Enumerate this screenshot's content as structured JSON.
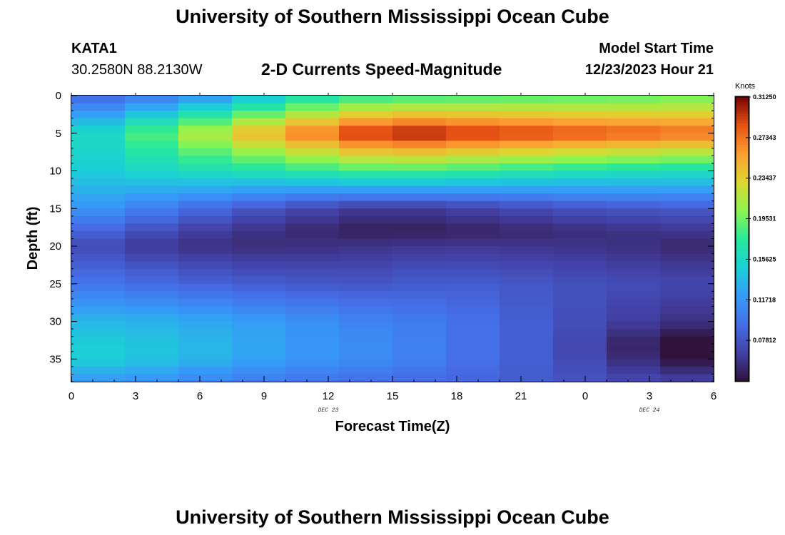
{
  "header": {
    "title": "University of Southern Mississippi Ocean Cube",
    "station_id": "KATA1",
    "station_coords": "30.2580N  88.2130W",
    "plot_subtitle": "2-D Currents Speed-Magnitude",
    "model_start_label": "Model Start Time",
    "model_start_value": "12/23/2023 Hour 21"
  },
  "footer": {
    "title": "University of Southern Mississippi Ocean Cube"
  },
  "chart_data": {
    "type": "heatmap",
    "title": "2-D Currents Speed-Magnitude",
    "xlabel": "Forecast Time(Z)",
    "ylabel": "Depth (ft)",
    "x_tick_labels": [
      "0",
      "3",
      "6",
      "9",
      "12",
      "15",
      "18",
      "21",
      "0",
      "3",
      "6"
    ],
    "x_date_labels": [
      {
        "text": "DEC 23",
        "at_tick": 4
      },
      {
        "text": "DEC 24",
        "at_tick": 9
      }
    ],
    "x_range_hours": [
      0,
      30
    ],
    "y_tick_labels": [
      "0",
      "5",
      "10",
      "15",
      "20",
      "25",
      "30",
      "35"
    ],
    "y_range_ft": [
      0,
      38
    ],
    "time_columns_hours": [
      0,
      2.5,
      5,
      7.5,
      10,
      12.5,
      15,
      17.5,
      20,
      22.5,
      25,
      27.5,
      30
    ],
    "depth_rows_ft": [
      0,
      5,
      10,
      15,
      18,
      20,
      25,
      30,
      33,
      35,
      38
    ],
    "speed_knots": [
      [
        0.085,
        0.095,
        0.105,
        0.125,
        0.15,
        0.17,
        0.175,
        0.18,
        0.18,
        0.185,
        0.185,
        0.19,
        0.195
      ],
      [
        0.14,
        0.175,
        0.2,
        0.235,
        0.26,
        0.285,
        0.31,
        0.3,
        0.295,
        0.29,
        0.285,
        0.28,
        0.275
      ],
      [
        0.145,
        0.15,
        0.16,
        0.165,
        0.17,
        0.18,
        0.185,
        0.18,
        0.175,
        0.17,
        0.165,
        0.165,
        0.16
      ],
      [
        0.125,
        0.11,
        0.1,
        0.085,
        0.075,
        0.065,
        0.06,
        0.065,
        0.07,
        0.075,
        0.08,
        0.08,
        0.085
      ],
      [
        0.095,
        0.08,
        0.07,
        0.06,
        0.055,
        0.05,
        0.045,
        0.05,
        0.05,
        0.055,
        0.055,
        0.06,
        0.06
      ],
      [
        0.08,
        0.065,
        0.06,
        0.055,
        0.055,
        0.058,
        0.06,
        0.062,
        0.06,
        0.06,
        0.058,
        0.055,
        0.05
      ],
      [
        0.1,
        0.095,
        0.09,
        0.085,
        0.082,
        0.08,
        0.08,
        0.085,
        0.082,
        0.078,
        0.075,
        0.072,
        0.07
      ],
      [
        0.135,
        0.135,
        0.13,
        0.125,
        0.12,
        0.11,
        0.105,
        0.1,
        0.09,
        0.08,
        0.07,
        0.06,
        0.055
      ],
      [
        0.15,
        0.145,
        0.14,
        0.132,
        0.122,
        0.115,
        0.11,
        0.1,
        0.09,
        0.08,
        0.06,
        0.04,
        0.03
      ],
      [
        0.15,
        0.145,
        0.138,
        0.13,
        0.12,
        0.115,
        0.11,
        0.1,
        0.09,
        0.08,
        0.065,
        0.045,
        0.035
      ],
      [
        0.12,
        0.118,
        0.112,
        0.105,
        0.1,
        0.095,
        0.092,
        0.09,
        0.085,
        0.08,
        0.075,
        0.07,
        0.068
      ]
    ],
    "colorbar": {
      "unit_label": "Knots",
      "vmin": 0.03906,
      "vmax": 0.3125,
      "tick_labels": [
        "0.31250",
        "0.27343",
        "0.23437",
        "0.19531",
        "0.15625",
        "0.11718",
        "0.07812"
      ],
      "tick_values": [
        0.3125,
        0.27343,
        0.23437,
        0.19531,
        0.15625,
        0.11718,
        0.07812
      ]
    }
  }
}
